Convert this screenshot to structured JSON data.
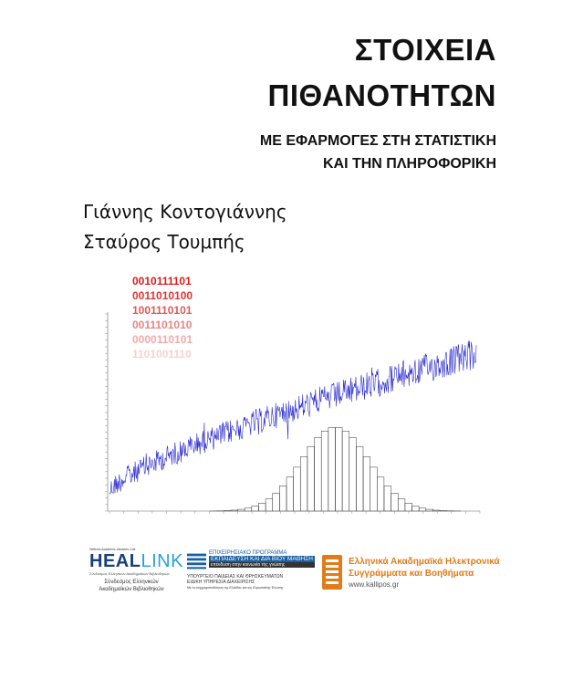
{
  "title": {
    "line1": "ΣΤΟΙΧΕΙΑ",
    "line2": "ΠΙΘΑΝΟΤΗΤΩΝ"
  },
  "subtitle": {
    "line1": "ΜΕ ΕΦΑΡΜΟΓΕΣ ΣΤΗ ΣΤΑΤΙΣΤΙΚΗ",
    "line2": "ΚΑΙ ΤΗΝ ΠΛΗΡΟΦΟΡΙΚΗ"
  },
  "authors": [
    "Γιάννης Κοντογιάννης",
    "Σταύρος Τουμπής"
  ],
  "binary_lines": [
    "0010111101",
    "0011010100",
    "1001110101",
    "0011101010",
    "0000110101",
    "1101001110"
  ],
  "binary_colors": [
    "#d71c1c",
    "#dc3636",
    "#e15a5a",
    "#e98484",
    "#f0aaaa",
    "#f6d2d2"
  ],
  "series_color": "#2a2ad0",
  "histogram_color": "#333333",
  "logos": {
    "heallink": {
      "small": "Hellenic Academic Libraries Link",
      "name_heal": "HEAL",
      "name_link": "LINK",
      "sub": "Σύνδεσμος Ελληνικών Ακαδημαϊκών Βιβλιοθηκών",
      "caption1": "Σύνδεσμος Ελληνικών",
      "caption2": "Ακαδημαϊκών Βιβλιοθηκών"
    },
    "epeaek": {
      "line1": "ΕΠΙΧΕΙΡΗΣΙΑΚΟ ΠΡΟΓΡΑΜΜΑ",
      "line2": "ΕΚΠΑΙΔΕΥΣΗ ΚΑΙ ΔΙΑ ΒΙΟΥ ΜΑΘΗΣΗ",
      "line3": "επένδυση στην κοινωνία της γνώσης",
      "ministry1": "ΥΠΟΥΡΓΕΙΟ ΠΑΙΔΕΙΑΣ ΚΑΙ ΘΡΗΣΚΕΥΜΑΤΩΝ",
      "ministry2": "ΕΙΔΙΚΗ ΥΠΗΡΕΣΙΑ ΔΙΑΧΕΙΡΙΣΗΣ",
      "note": "Με τη συγχρηματοδότηση της Ελλάδας και της Ευρωπαϊκής Ένωσης"
    },
    "kallipos": {
      "line1": "Ελληνικά Ακαδημαϊκά Ηλεκτρονικά",
      "line2": "Συγγράμματα και Βοηθήματα",
      "url": "www.kallipos.gr"
    }
  }
}
